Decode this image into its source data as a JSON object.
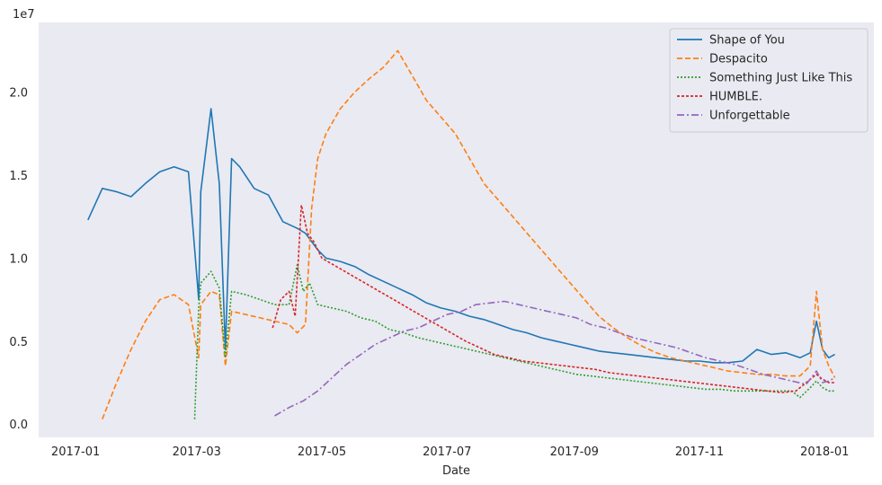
{
  "chart_data": {
    "type": "line",
    "title": "",
    "xlabel": "Date",
    "ylabel": "",
    "y_multiplier_label": "1e7",
    "y_ticks": [
      {
        "value": 0.0,
        "label": "0.0"
      },
      {
        "value": 0.5,
        "label": "0.5"
      },
      {
        "value": 1.0,
        "label": "1.0"
      },
      {
        "value": 1.5,
        "label": "1.5"
      },
      {
        "value": 2.0,
        "label": "2.0"
      }
    ],
    "ylim": [
      -0.08,
      2.42
    ],
    "x_ticks": [
      {
        "value": 0,
        "label": "2017-01"
      },
      {
        "value": 59,
        "label": "2017-03"
      },
      {
        "value": 120,
        "label": "2017-05"
      },
      {
        "value": 181,
        "label": "2017-07"
      },
      {
        "value": 243,
        "label": "2017-09"
      },
      {
        "value": 304,
        "label": "2017-11"
      },
      {
        "value": 365,
        "label": "2018-01"
      }
    ],
    "xlim": [
      -18,
      389
    ],
    "x_unit": "days since 2017-01-01",
    "legend_position": "upper-right",
    "series": [
      {
        "name": "Shape of You",
        "color": "#1f77b4",
        "dash": "solid",
        "x": [
          6,
          13,
          20,
          27,
          34,
          41,
          48,
          55,
          60,
          61,
          66,
          70,
          73,
          76,
          80,
          87,
          94,
          101,
          108,
          112,
          115,
          118,
          122,
          129,
          136,
          143,
          150,
          157,
          164,
          171,
          178,
          185,
          192,
          199,
          206,
          213,
          220,
          227,
          234,
          241,
          248,
          255,
          262,
          269,
          276,
          283,
          290,
          297,
          304,
          311,
          318,
          325,
          332,
          339,
          346,
          353,
          358,
          361,
          364,
          367,
          370
        ],
        "values": [
          1.23,
          1.42,
          1.4,
          1.37,
          1.45,
          1.52,
          1.55,
          1.52,
          0.75,
          1.4,
          1.9,
          1.45,
          0.45,
          1.6,
          1.55,
          1.42,
          1.38,
          1.22,
          1.18,
          1.15,
          1.1,
          1.05,
          1.0,
          0.98,
          0.95,
          0.9,
          0.86,
          0.82,
          0.78,
          0.73,
          0.7,
          0.68,
          0.65,
          0.63,
          0.6,
          0.57,
          0.55,
          0.52,
          0.5,
          0.48,
          0.46,
          0.44,
          0.43,
          0.42,
          0.41,
          0.4,
          0.39,
          0.38,
          0.38,
          0.37,
          0.37,
          0.38,
          0.45,
          0.42,
          0.43,
          0.4,
          0.43,
          0.62,
          0.45,
          0.4,
          0.42
        ]
      },
      {
        "name": "Despacito",
        "color": "#ff7f0e",
        "dash": "6,3",
        "x": [
          13,
          20,
          27,
          34,
          41,
          48,
          55,
          60,
          61,
          66,
          70,
          73,
          76,
          83,
          90,
          97,
          104,
          108,
          112,
          115,
          118,
          122,
          129,
          136,
          143,
          150,
          157,
          164,
          171,
          178,
          185,
          192,
          199,
          206,
          213,
          220,
          227,
          234,
          241,
          248,
          255,
          262,
          269,
          276,
          283,
          290,
          297,
          304,
          311,
          318,
          325,
          332,
          339,
          346,
          353,
          358,
          361,
          364,
          367,
          370
        ],
        "values": [
          0.03,
          0.25,
          0.45,
          0.62,
          0.75,
          0.78,
          0.72,
          0.4,
          0.72,
          0.8,
          0.78,
          0.35,
          0.68,
          0.66,
          0.64,
          0.62,
          0.6,
          0.55,
          0.6,
          1.3,
          1.6,
          1.75,
          1.9,
          2.0,
          2.08,
          2.15,
          2.25,
          2.1,
          1.95,
          1.85,
          1.75,
          1.6,
          1.45,
          1.35,
          1.25,
          1.15,
          1.05,
          0.95,
          0.85,
          0.75,
          0.65,
          0.58,
          0.52,
          0.47,
          0.43,
          0.4,
          0.38,
          0.36,
          0.34,
          0.32,
          0.31,
          0.3,
          0.3,
          0.29,
          0.29,
          0.35,
          0.8,
          0.45,
          0.35,
          0.28
        ]
      },
      {
        "name": "Something Just Like This",
        "color": "#2ca02c",
        "dash": "2,2",
        "x": [
          58,
          60,
          61,
          66,
          70,
          73,
          76,
          83,
          90,
          97,
          104,
          108,
          111,
          114,
          118,
          125,
          132,
          139,
          146,
          153,
          160,
          167,
          174,
          181,
          188,
          195,
          202,
          209,
          216,
          223,
          230,
          237,
          244,
          251,
          258,
          265,
          272,
          279,
          286,
          293,
          300,
          307,
          314,
          321,
          328,
          335,
          342,
          349,
          353,
          358,
          361,
          364,
          367,
          370
        ],
        "values": [
          0.03,
          0.7,
          0.85,
          0.92,
          0.82,
          0.4,
          0.8,
          0.78,
          0.75,
          0.72,
          0.72,
          0.96,
          0.8,
          0.85,
          0.72,
          0.7,
          0.68,
          0.64,
          0.62,
          0.57,
          0.55,
          0.52,
          0.5,
          0.48,
          0.46,
          0.44,
          0.42,
          0.4,
          0.38,
          0.36,
          0.34,
          0.32,
          0.3,
          0.29,
          0.28,
          0.27,
          0.26,
          0.25,
          0.24,
          0.23,
          0.22,
          0.21,
          0.21,
          0.2,
          0.2,
          0.2,
          0.2,
          0.2,
          0.16,
          0.22,
          0.26,
          0.22,
          0.2,
          0.2
        ]
      },
      {
        "name": "HUMBLE.",
        "color": "#d62728",
        "dash": "3,2",
        "x": [
          96,
          100,
          104,
          107,
          110,
          113,
          116,
          120,
          127,
          134,
          141,
          148,
          155,
          162,
          169,
          176,
          183,
          190,
          197,
          204,
          211,
          218,
          225,
          232,
          239,
          246,
          253,
          260,
          267,
          274,
          281,
          288,
          295,
          302,
          309,
          316,
          323,
          330,
          337,
          344,
          351,
          356,
          361,
          364,
          367,
          370
        ],
        "values": [
          0.58,
          0.75,
          0.8,
          0.65,
          1.32,
          1.15,
          1.1,
          1.0,
          0.95,
          0.9,
          0.85,
          0.8,
          0.75,
          0.7,
          0.65,
          0.6,
          0.55,
          0.5,
          0.46,
          0.42,
          0.4,
          0.38,
          0.37,
          0.36,
          0.35,
          0.34,
          0.33,
          0.31,
          0.3,
          0.29,
          0.28,
          0.27,
          0.26,
          0.25,
          0.24,
          0.23,
          0.22,
          0.21,
          0.2,
          0.19,
          0.2,
          0.25,
          0.3,
          0.27,
          0.25,
          0.25
        ]
      },
      {
        "name": "Unforgettable",
        "color": "#9467bd",
        "dash": "8,3,2,3",
        "x": [
          97,
          104,
          111,
          118,
          125,
          132,
          139,
          146,
          153,
          160,
          167,
          174,
          181,
          188,
          195,
          202,
          209,
          216,
          223,
          230,
          237,
          244,
          251,
          258,
          265,
          272,
          279,
          286,
          293,
          300,
          307,
          314,
          321,
          328,
          335,
          342,
          349,
          356,
          361,
          364,
          367,
          370
        ],
        "values": [
          0.05,
          0.1,
          0.14,
          0.2,
          0.28,
          0.36,
          0.42,
          0.48,
          0.52,
          0.56,
          0.58,
          0.62,
          0.66,
          0.68,
          0.72,
          0.73,
          0.74,
          0.72,
          0.7,
          0.68,
          0.66,
          0.64,
          0.6,
          0.58,
          0.55,
          0.52,
          0.5,
          0.48,
          0.46,
          0.43,
          0.4,
          0.38,
          0.36,
          0.33,
          0.3,
          0.28,
          0.26,
          0.24,
          0.32,
          0.25,
          0.26,
          0.28
        ]
      }
    ]
  }
}
